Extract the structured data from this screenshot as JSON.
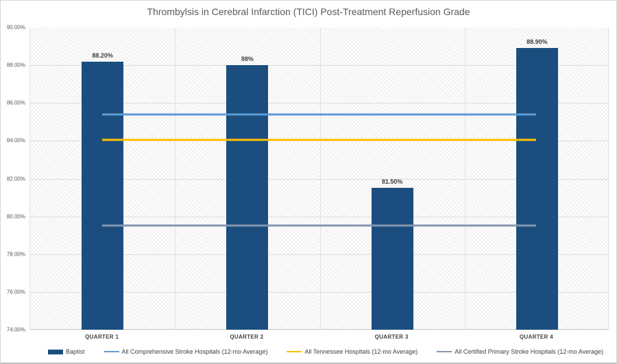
{
  "chart_data": {
    "type": "bar",
    "title": "Thrombylsis in Cerebral Infarction (TICI) Post-Treatment Reperfusion Grade",
    "categories": [
      "QUARTER 1",
      "QUARTER 2",
      "QUARTER 3",
      "QUARTER 4"
    ],
    "series": [
      {
        "name": "Baptist",
        "type": "bar",
        "color": "#1B4E7E",
        "values": [
          88.2,
          88.0,
          81.5,
          88.9
        ],
        "labels": [
          "88.20%",
          "88%",
          "81.50%",
          "88.90%"
        ]
      },
      {
        "name": "All Comprehensive Stroke Hospitals (12-mo Average)",
        "type": "line",
        "color": "#5B9BD5",
        "value": 85.4
      },
      {
        "name": "All Tennessee Hospitals (12-mo Average)",
        "type": "line",
        "color": "#FFC000",
        "value": 84.05
      },
      {
        "name": "All Certified Primary Stroke Hospitals (12-mo Average)",
        "type": "line",
        "color": "#8496B0",
        "value": 79.5
      }
    ],
    "ylim": [
      74,
      90
    ],
    "yticks": [
      {
        "value": 90,
        "label": "90.00%"
      },
      {
        "value": 88,
        "label": "88.00%"
      },
      {
        "value": 86,
        "label": "86.00%"
      },
      {
        "value": 84,
        "label": "84.00%"
      },
      {
        "value": 82,
        "label": "82.00%"
      },
      {
        "value": 80,
        "label": "80.00%"
      },
      {
        "value": 78,
        "label": "78.00%"
      },
      {
        "value": 76,
        "label": "76.00%"
      }
    ],
    "xtick_style": "uppercase-bold",
    "grid": true,
    "plot_fill": "diagonal-crosshatch",
    "legend_position": "bottom"
  }
}
